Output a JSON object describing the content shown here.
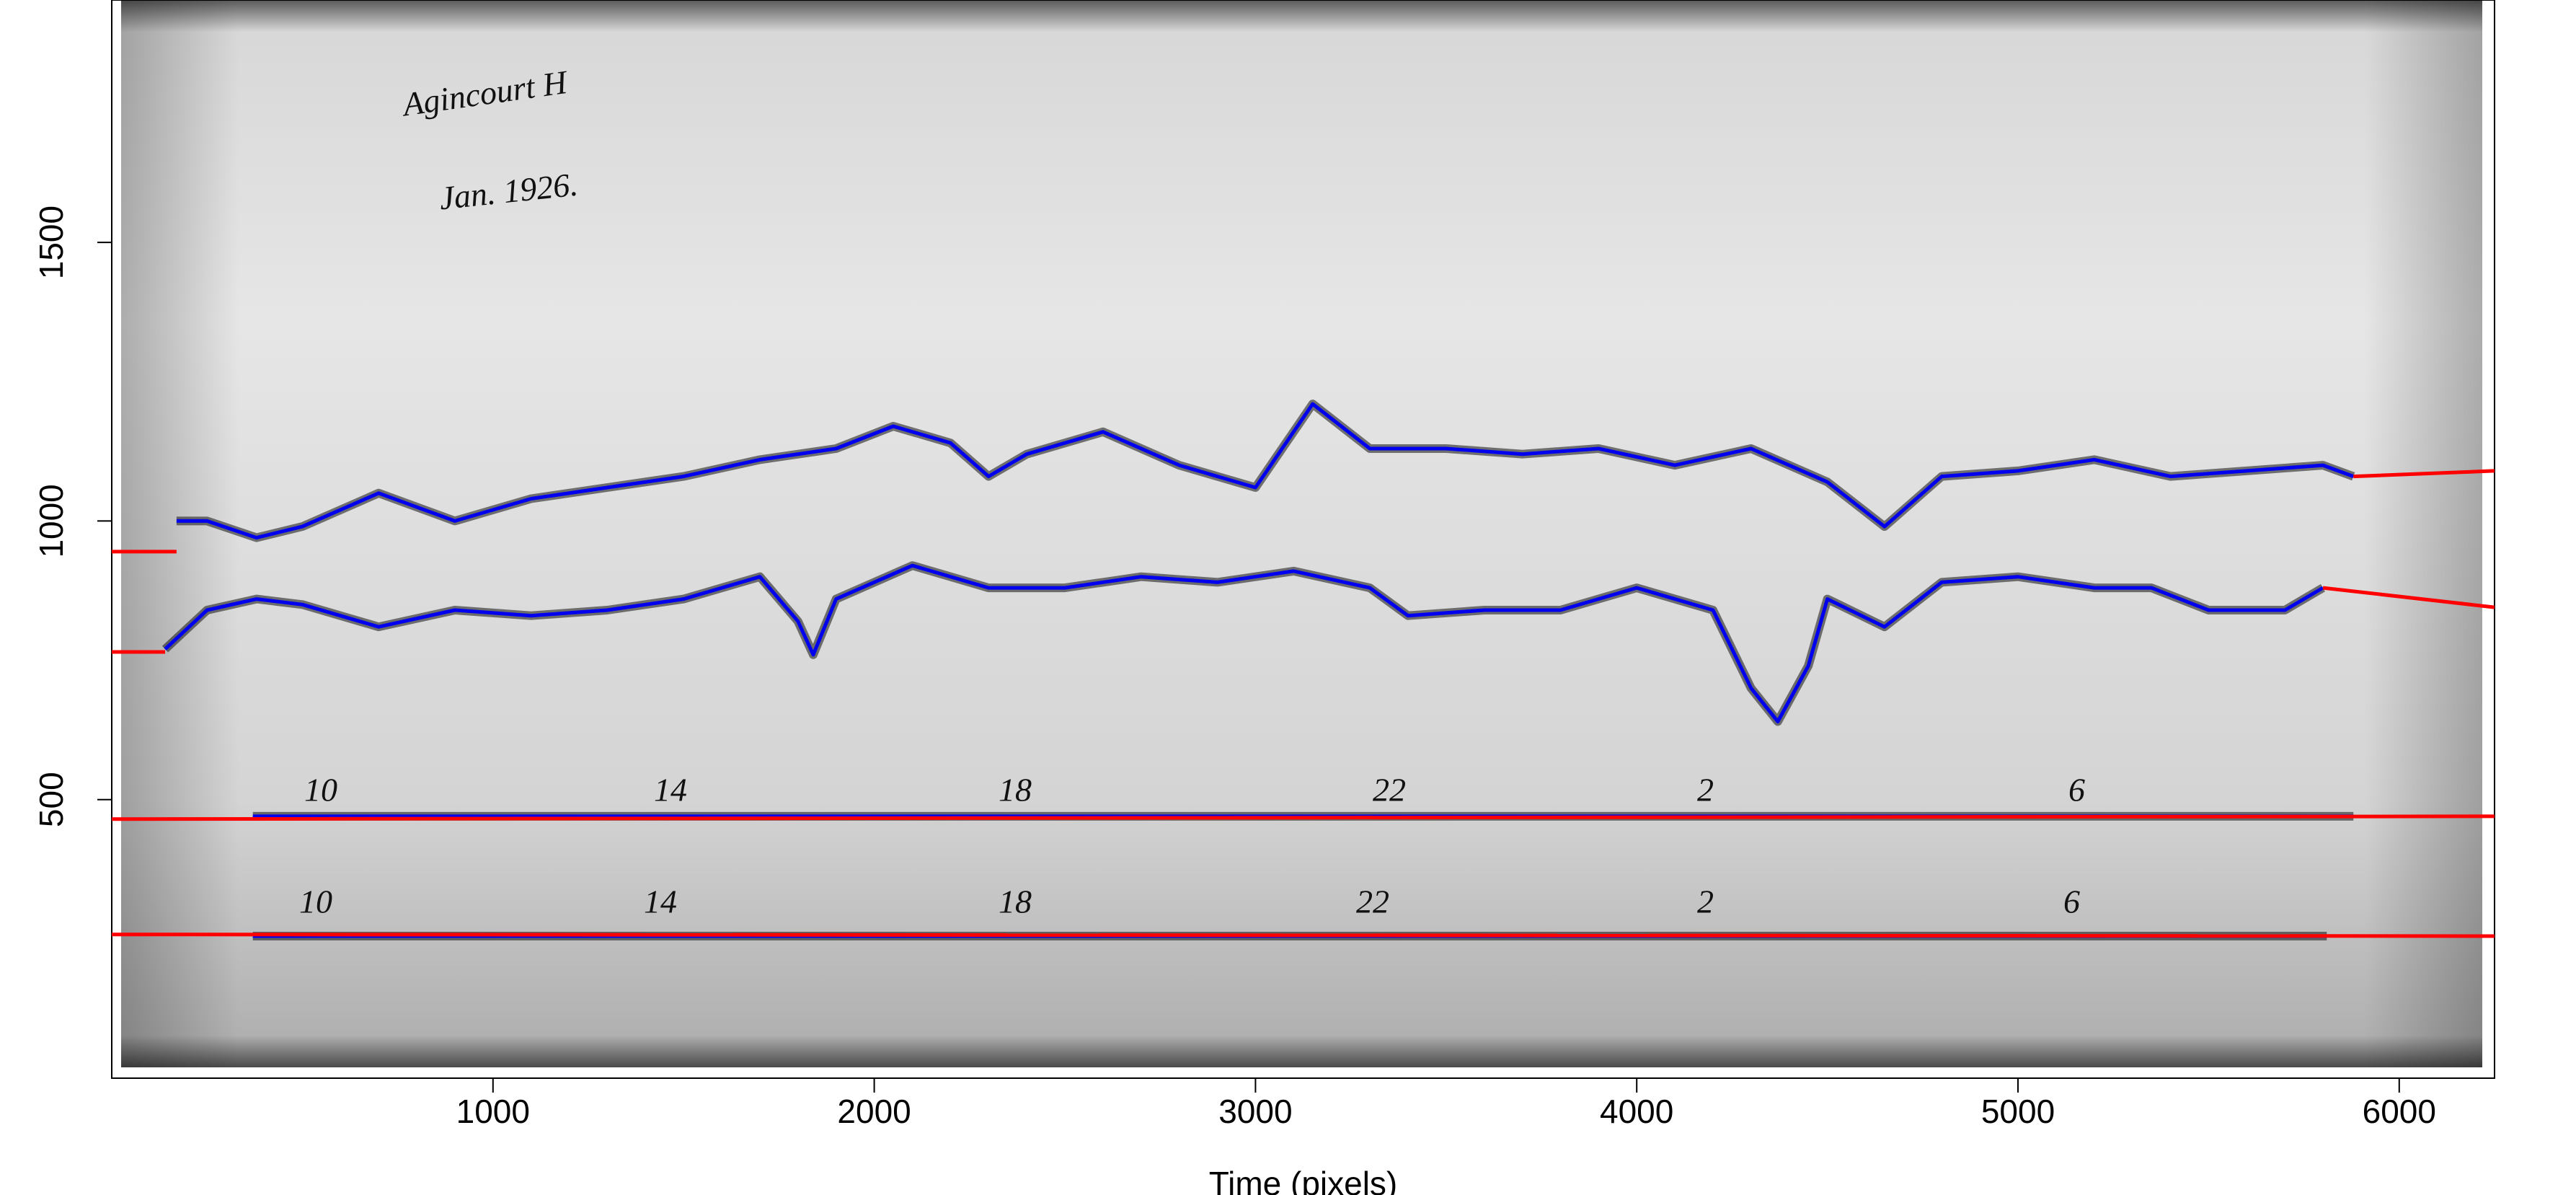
{
  "chart_data": {
    "type": "line",
    "xlabel": "Time (pixels)",
    "xlim": [
      0,
      6250
    ],
    "ylim": [
      0,
      1935
    ],
    "xticks": [
      1000,
      2000,
      3000,
      4000,
      5000,
      6000
    ],
    "yticks": [
      500,
      1000,
      1500
    ],
    "annotations": [
      "Agincourt H",
      "Jan. 1926."
    ],
    "hour_marks_upper": [
      "10",
      "14",
      "18",
      "22",
      "2",
      "6"
    ],
    "hour_marks_lower": [
      "10",
      "14",
      "18",
      "22",
      "2",
      "6"
    ],
    "series": [
      {
        "color": "#0000ee",
        "x": [
          170,
          250,
          380,
          500,
          700,
          900,
          1100,
          1300,
          1500,
          1700,
          1900,
          2050,
          2200,
          2300,
          2400,
          2600,
          2800,
          3000,
          3150,
          3300,
          3500,
          3700,
          3900,
          4100,
          4300,
          4500,
          4650,
          4800,
          5000,
          5200,
          5400,
          5600,
          5800,
          5880
        ],
        "values": [
          1000,
          1000,
          970,
          990,
          1050,
          1000,
          1040,
          1060,
          1080,
          1110,
          1130,
          1170,
          1140,
          1080,
          1120,
          1160,
          1100,
          1060,
          1210,
          1130,
          1130,
          1120,
          1130,
          1100,
          1130,
          1070,
          990,
          1080,
          1090,
          1110,
          1080,
          1090,
          1100,
          1080
        ]
      },
      {
        "color": "#0000ee",
        "x": [
          140,
          250,
          380,
          500,
          700,
          900,
          1100,
          1300,
          1500,
          1700,
          1800,
          1840,
          1900,
          2100,
          2300,
          2500,
          2700,
          2900,
          3100,
          3300,
          3400,
          3600,
          3800,
          4000,
          4200,
          4300,
          4370,
          4450,
          4500,
          4650,
          4800,
          5000,
          5200,
          5350,
          5500,
          5700,
          5800
        ],
        "values": [
          770,
          840,
          860,
          850,
          810,
          840,
          830,
          840,
          860,
          900,
          820,
          760,
          860,
          920,
          880,
          880,
          900,
          890,
          910,
          880,
          830,
          840,
          840,
          880,
          840,
          700,
          640,
          740,
          860,
          810,
          890,
          900,
          880,
          880,
          840,
          840,
          880
        ]
      },
      {
        "color": "#0000ee",
        "x": [
          370,
          5880
        ],
        "values": [
          470,
          470
        ]
      },
      {
        "color": "#0000ee",
        "x": [
          370,
          5810
        ],
        "values": [
          255,
          255
        ]
      },
      {
        "color": "#ff0000",
        "x": [
          0,
          170,
          null,
          5880,
          6250
        ],
        "values": [
          945,
          945,
          null,
          1080,
          1090
        ]
      },
      {
        "color": "#ff0000",
        "x": [
          0,
          140,
          null,
          5800,
          6250
        ],
        "values": [
          765,
          765,
          null,
          880,
          845
        ]
      },
      {
        "color": "#ff0000",
        "x": [
          0,
          6250
        ],
        "values": [
          465,
          470
        ]
      },
      {
        "color": "#ff0000",
        "x": [
          0,
          6250
        ],
        "values": [
          258,
          255
        ]
      }
    ]
  }
}
